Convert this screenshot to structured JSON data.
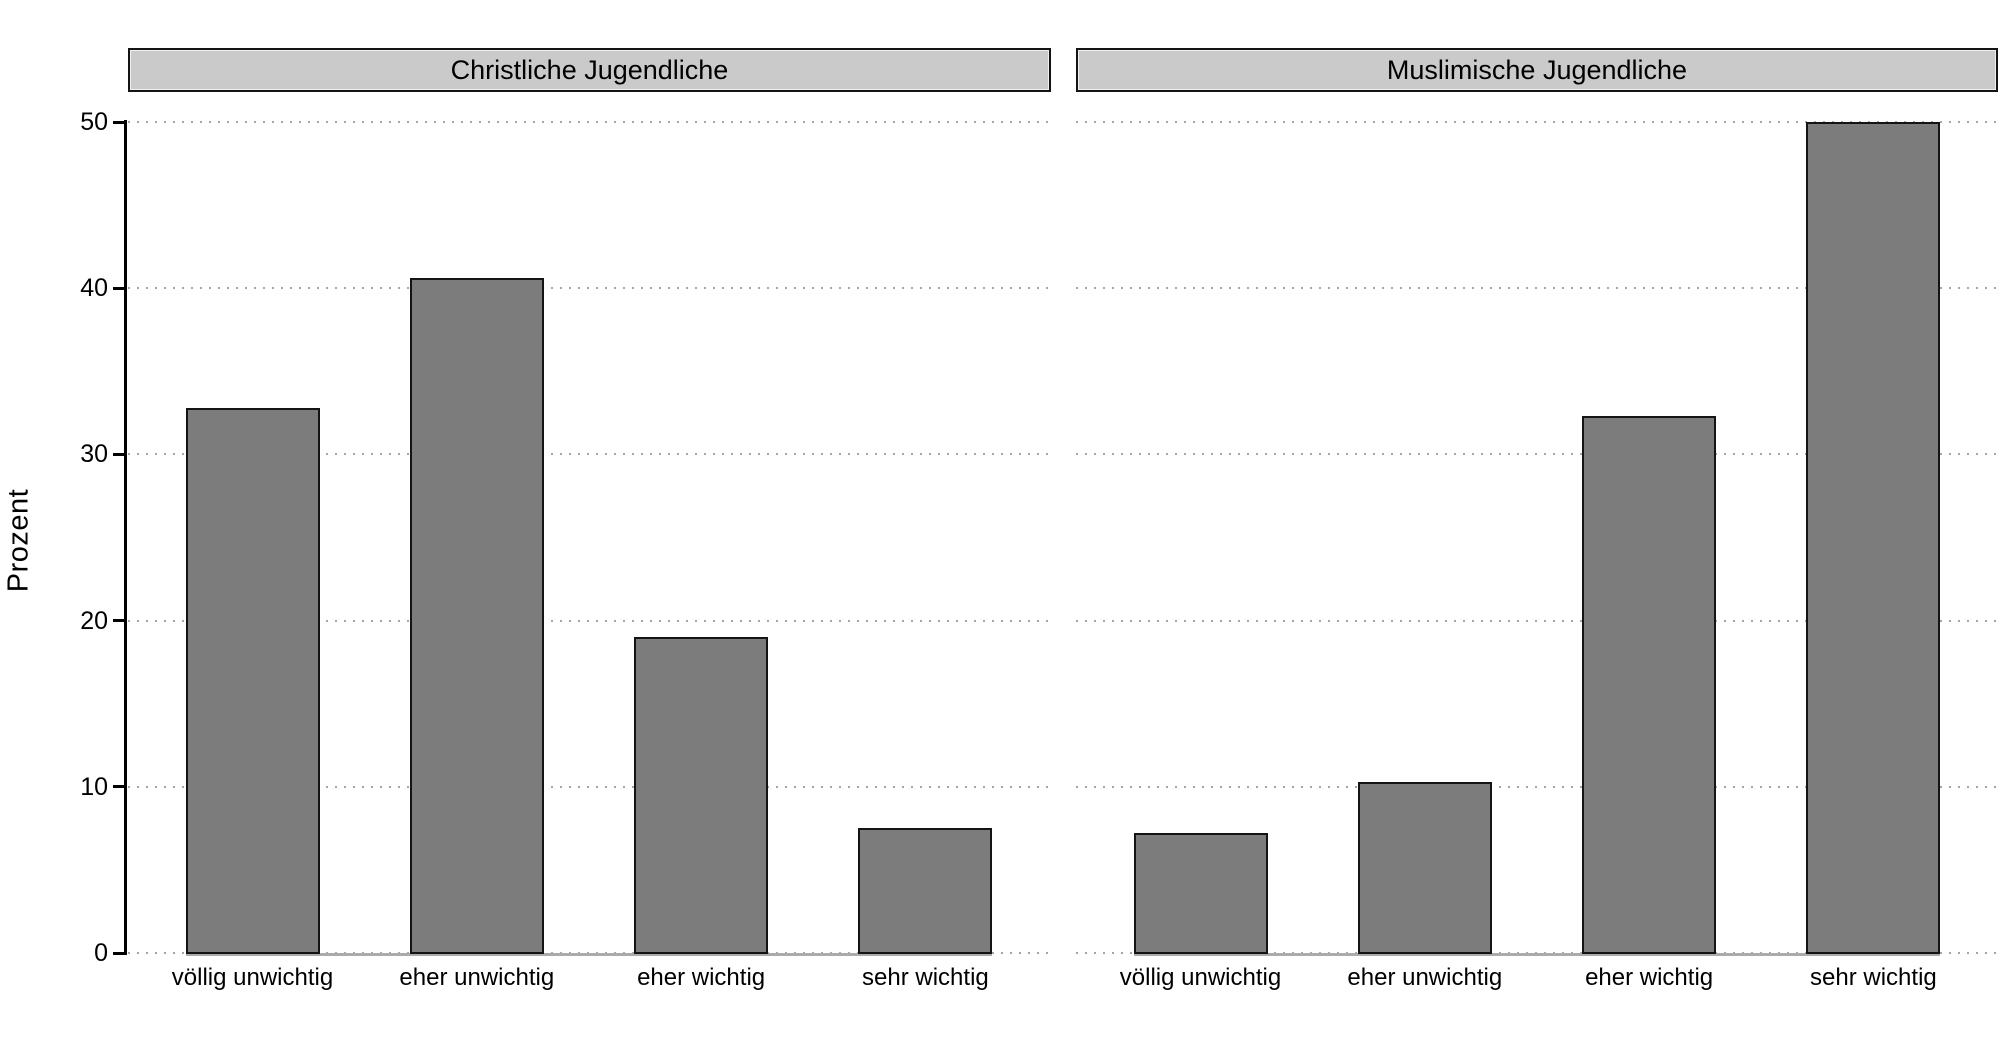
{
  "figure": {
    "background": "#ffffff"
  },
  "chart_data": {
    "type": "bar",
    "title": "",
    "xlabel": "",
    "ylabel": "Prozent",
    "ylim": [
      0,
      50
    ],
    "yticks": [
      0,
      10,
      20,
      30,
      40,
      50
    ],
    "grid": "horizontal-dotted",
    "legend": "none",
    "categories": [
      "völlig unwichtig",
      "eher unwichtig",
      "eher wichtig",
      "sehr wichtig"
    ],
    "panels": [
      {
        "title": "Christliche Jugendliche",
        "values": [
          32.8,
          40.6,
          19.0,
          7.5
        ]
      },
      {
        "title": "Muslimische Jugendliche",
        "values": [
          7.2,
          10.3,
          32.3,
          50.0
        ]
      }
    ],
    "colors": {
      "bar_fill": "#7c7c7c",
      "bar_border": "#141414",
      "panel_header_fill": "#cacaca",
      "panel_header_border": "#141414",
      "grid_dot": "#a6a6a6",
      "baseline": "#ababab",
      "axis": "#000000",
      "text": "#000000"
    }
  }
}
